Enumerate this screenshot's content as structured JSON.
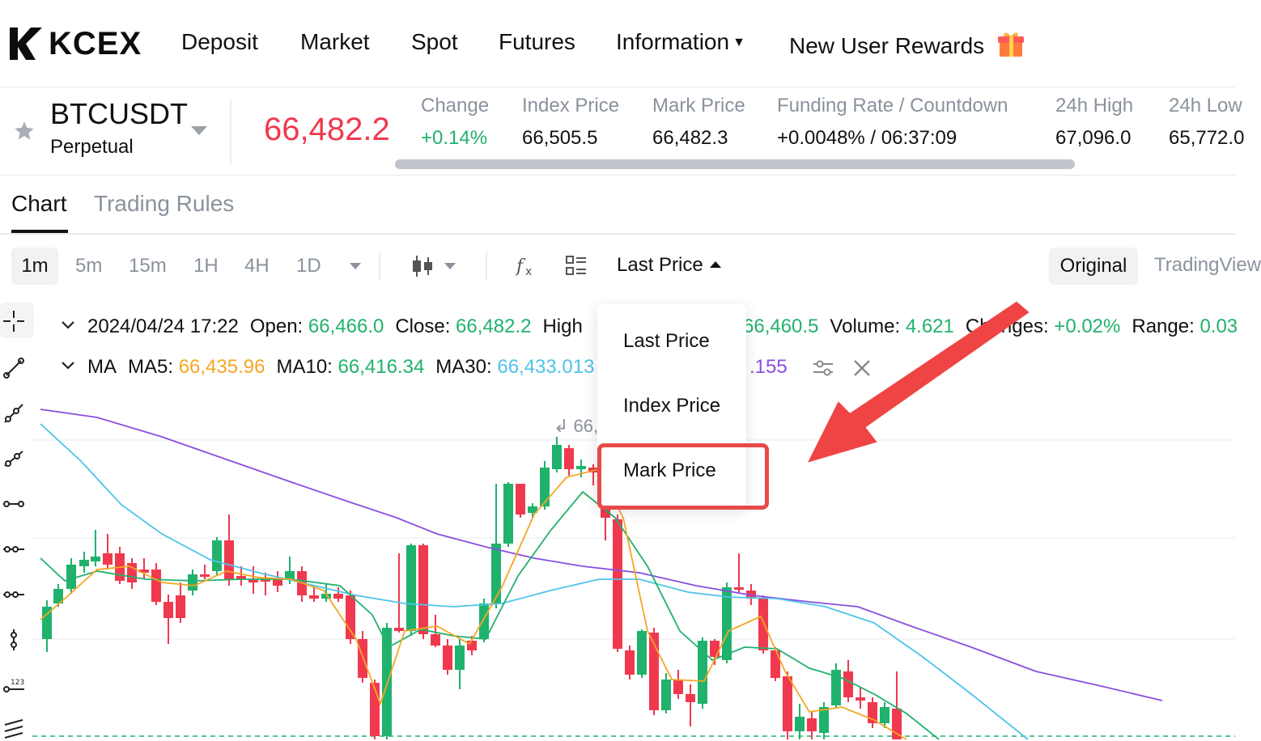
{
  "nav": {
    "logo_text": "KCEX",
    "items": [
      "Deposit",
      "Market",
      "Spot",
      "Futures",
      "Information",
      "New User Rewards"
    ]
  },
  "ticker": {
    "symbol": "BTCUSDT",
    "contract_type": "Perpetual",
    "last_price": "66,482.2",
    "stats": [
      {
        "label": "Change",
        "value": "+0.14%"
      },
      {
        "label": "Index Price",
        "value": "66,505.5"
      },
      {
        "label": "Mark Price",
        "value": "66,482.3"
      },
      {
        "label": "Funding Rate / Countdown",
        "value": "+0.0048% / 06:37:09"
      },
      {
        "label": "24h High",
        "value": "67,096.0"
      },
      {
        "label": "24h Low",
        "value": "65,772.0"
      }
    ]
  },
  "tabs": [
    "Chart",
    "Trading Rules"
  ],
  "toolbar": {
    "timeframes": [
      "1m",
      "5m",
      "15m",
      "1H",
      "4H",
      "1D"
    ],
    "active_timeframe": "1m",
    "price_type": "Last Price",
    "views": [
      "Original",
      "TradingView"
    ]
  },
  "ohlc_line": {
    "datetime": "2024/04/24 17:22",
    "open_label": "Open:",
    "open": "66,466.0",
    "close_label": "Close:",
    "close": "66,482.2",
    "high_label": "High",
    "low_value_visible": "66,460.5",
    "volume_label": "Volume:",
    "volume": "4.621",
    "changes_label": "Changes:",
    "changes": "+0.02%",
    "range_label": "Range:",
    "range": "0.03"
  },
  "ma_line": {
    "label": "MA",
    "ma5_label": "MA5:",
    "ma5": "66,435.96",
    "ma10_label": "MA10:",
    "ma10": "66,416.34",
    "ma30_label": "MA30:",
    "ma30": "66,433.013",
    "ma_other_visible": ".155"
  },
  "peak_label": "66,",
  "dropdown": {
    "items": [
      "Last Price",
      "Index Price",
      "Mark Price"
    ],
    "highlighted": "Mark Price"
  },
  "colors": {
    "up": "#20b26c",
    "down": "#f0394e",
    "ma5": "#f5a623",
    "ma10": "#20b26c",
    "ma30": "#4ec3ea",
    "ma60": "#8a4fe0",
    "annotation": "#e84a4a"
  },
  "icons": [
    "star-icon",
    "candlestick-type-icon",
    "indicator-fx-icon",
    "layout-grid-icon",
    "crosshair-icon",
    "line-tool-icon",
    "settings-sliders-icon",
    "close-icon",
    "gift-icon"
  ]
}
